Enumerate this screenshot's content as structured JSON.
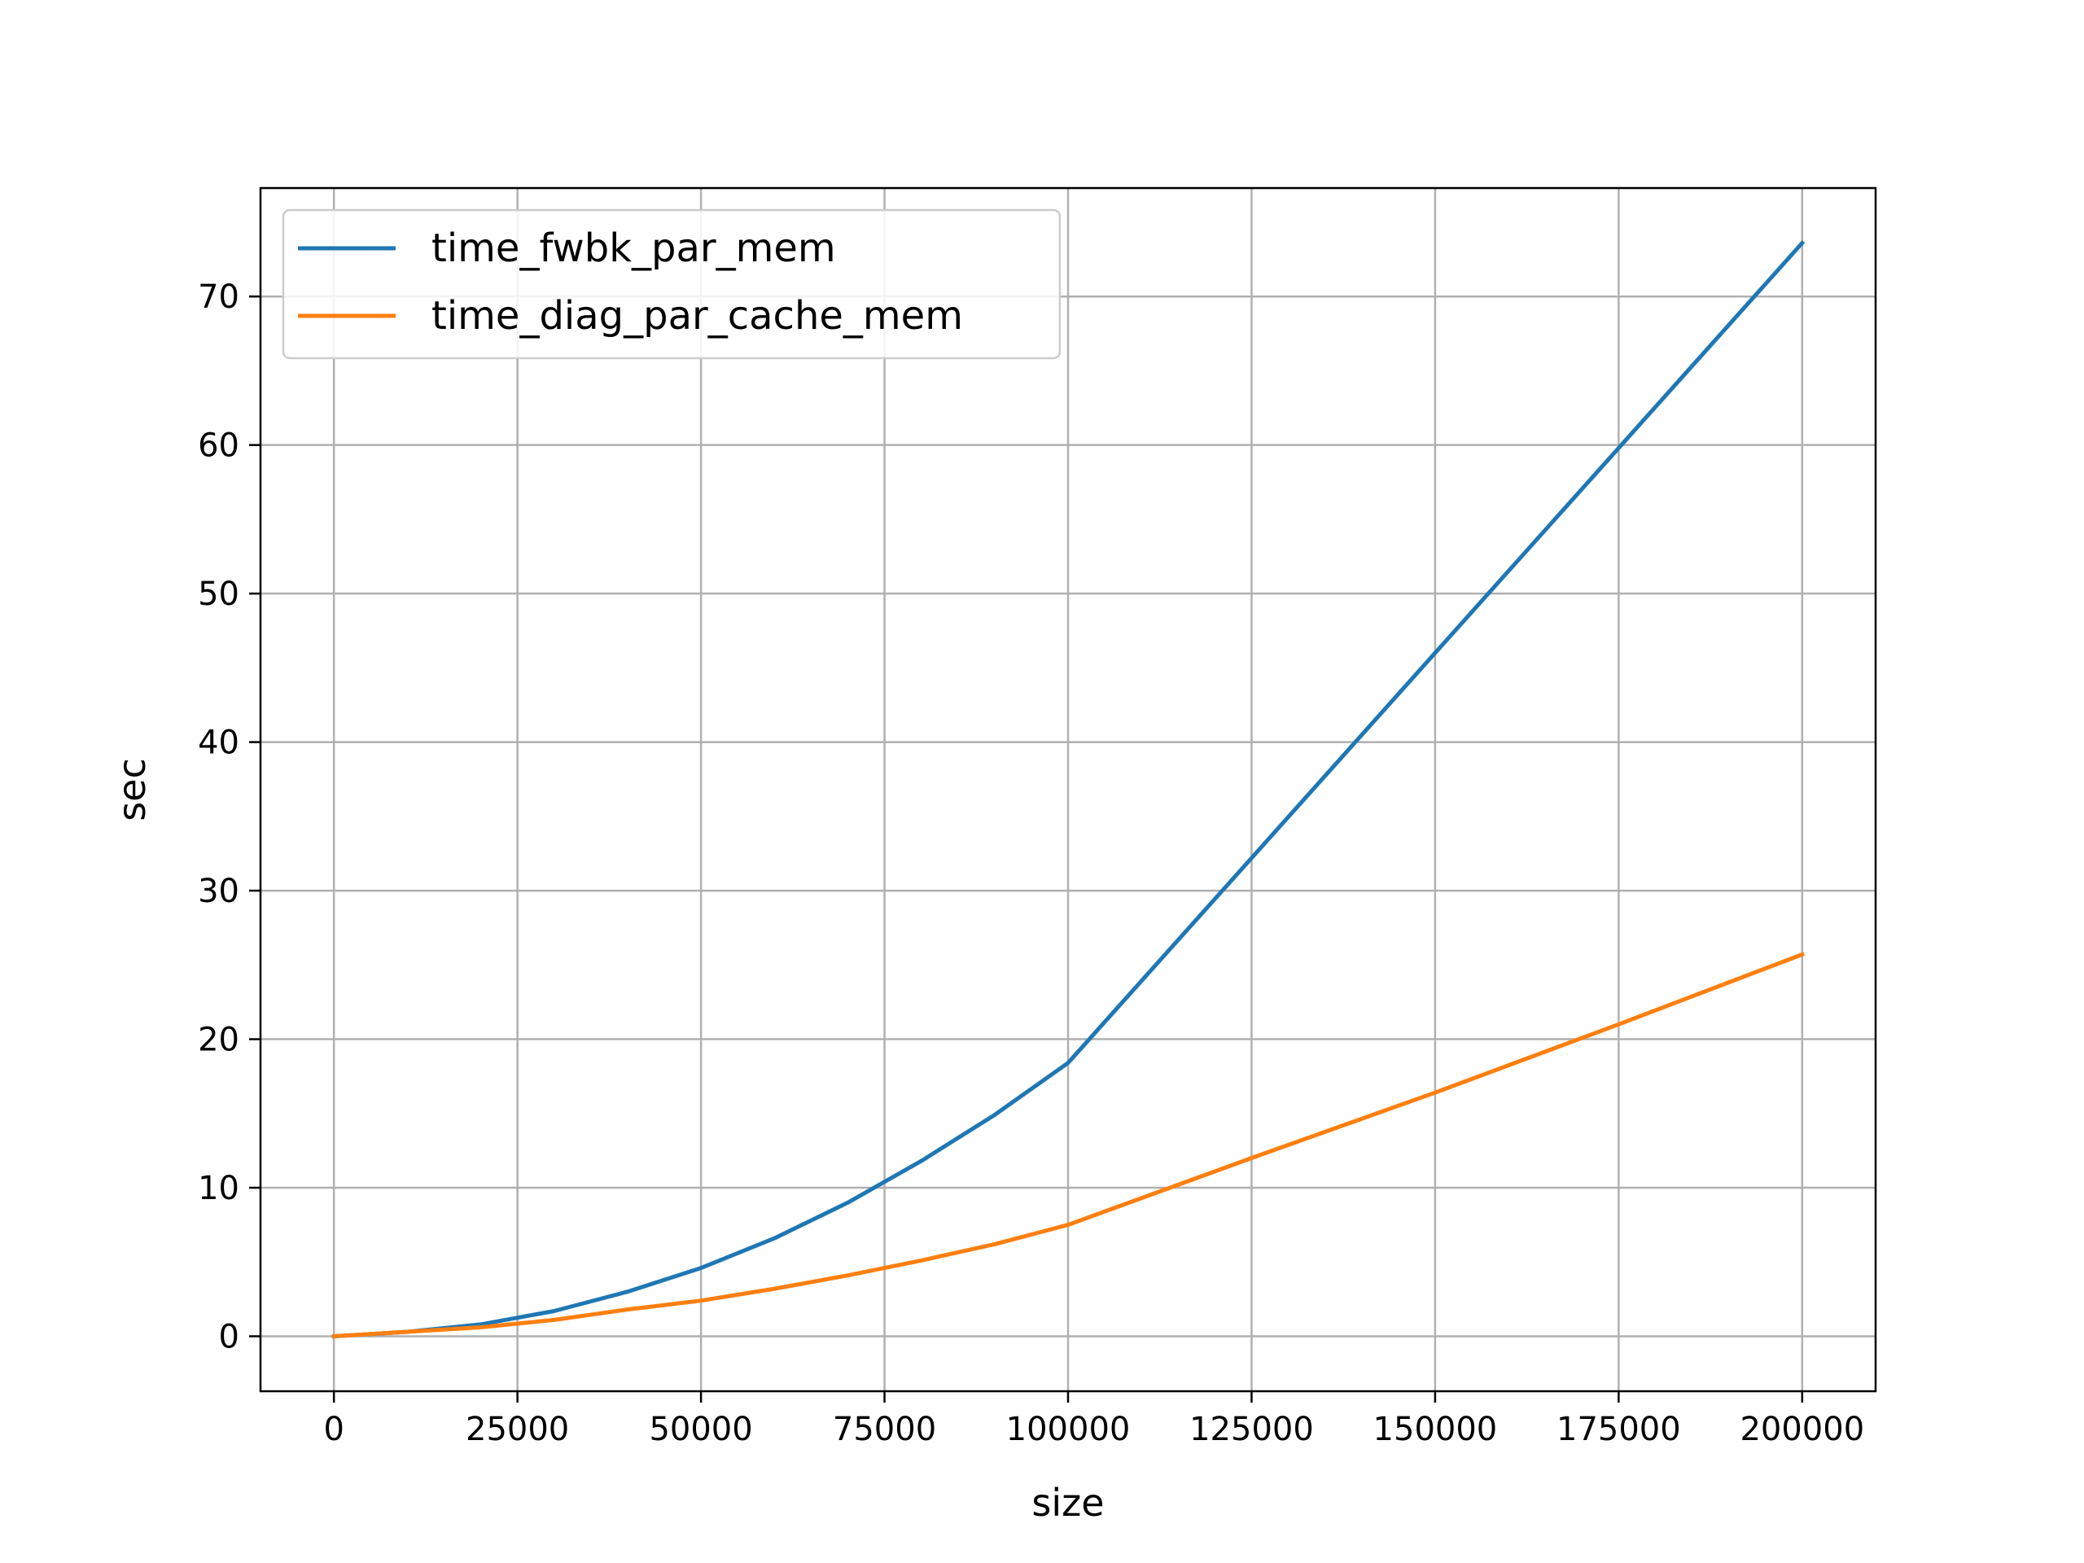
{
  "chart_data": {
    "type": "line",
    "title": "",
    "xlabel": "size",
    "ylabel": "sec",
    "xlim": [
      -10000,
      210000
    ],
    "ylim": [
      -3.7,
      77.3
    ],
    "xticks": [
      0,
      25000,
      50000,
      75000,
      100000,
      125000,
      150000,
      175000,
      200000
    ],
    "yticks": [
      0,
      10,
      20,
      30,
      40,
      50,
      60,
      70
    ],
    "grid": true,
    "legend_position": "top-left",
    "series": [
      {
        "name": "time_fwbk_par_mem",
        "color": "#1f77b4",
        "x": [
          0,
          10000,
          20000,
          30000,
          40000,
          50000,
          60000,
          70000,
          80000,
          90000,
          100000,
          125000,
          150000,
          175000,
          200000
        ],
        "y": [
          0,
          0.3,
          0.8,
          1.7,
          3.0,
          4.6,
          6.6,
          9.0,
          11.8,
          14.9,
          18.4,
          32.2,
          46.0,
          59.8,
          73.6
        ]
      },
      {
        "name": "time_diag_par_cache_mem",
        "color": "#ff7f0e",
        "x": [
          0,
          10000,
          20000,
          30000,
          40000,
          50000,
          60000,
          70000,
          80000,
          90000,
          100000,
          125000,
          150000,
          175000,
          200000
        ],
        "y": [
          0,
          0.3,
          0.6,
          1.1,
          1.8,
          2.4,
          3.2,
          4.1,
          5.1,
          6.2,
          7.5,
          12.0,
          16.4,
          21.0,
          25.7
        ]
      }
    ]
  }
}
